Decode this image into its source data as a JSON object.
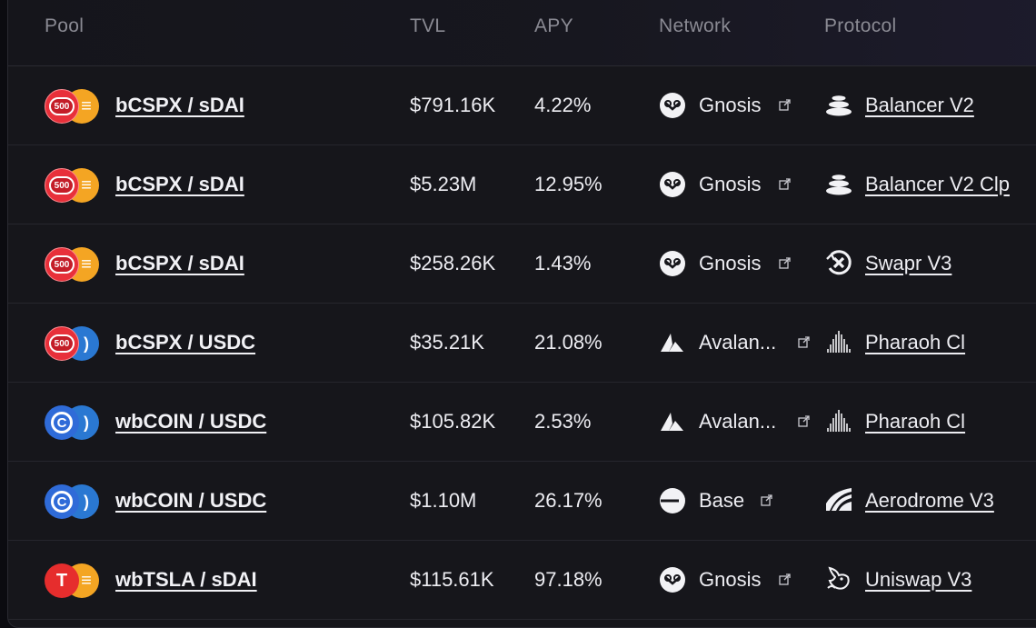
{
  "header": {
    "pool": "Pool",
    "tvl": "TVL",
    "apy": "APY",
    "network": "Network",
    "protocol": "Protocol"
  },
  "colors": {
    "background": "#16161b",
    "border": "#2a2a31",
    "text": "#ededf2",
    "muted": "#8a8a93"
  },
  "rows": [
    {
      "pool": "bCSPX / sDAI",
      "token_a": "sp500-icon",
      "token_b": "sdai-icon",
      "tvl": "$791.16K",
      "apy": "4.22%",
      "network": "Gnosis",
      "network_icon": "gnosis-icon",
      "protocol": "Balancer V2",
      "protocol_icon": "balancer-icon"
    },
    {
      "pool": "bCSPX / sDAI",
      "token_a": "sp500-icon",
      "token_b": "sdai-icon",
      "tvl": "$5.23M",
      "apy": "12.95%",
      "network": "Gnosis",
      "network_icon": "gnosis-icon",
      "protocol": "Balancer V2 Clp",
      "protocol_icon": "balancer-icon"
    },
    {
      "pool": "bCSPX / sDAI",
      "token_a": "sp500-icon",
      "token_b": "sdai-icon",
      "tvl": "$258.26K",
      "apy": "1.43%",
      "network": "Gnosis",
      "network_icon": "gnosis-icon",
      "protocol": "Swapr V3",
      "protocol_icon": "swapr-icon"
    },
    {
      "pool": "bCSPX / USDC",
      "token_a": "sp500-icon",
      "token_b": "usdc-icon",
      "tvl": "$35.21K",
      "apy": "21.08%",
      "network": "Avalan...",
      "network_icon": "avalanche-icon",
      "protocol": "Pharaoh Cl",
      "protocol_icon": "pharaoh-icon"
    },
    {
      "pool": "wbCOIN / USDC",
      "token_a": "coinbase-icon",
      "token_b": "usdc-icon",
      "tvl": "$105.82K",
      "apy": "2.53%",
      "network": "Avalan...",
      "network_icon": "avalanche-icon",
      "protocol": "Pharaoh Cl",
      "protocol_icon": "pharaoh-icon"
    },
    {
      "pool": "wbCOIN / USDC",
      "token_a": "coinbase-icon",
      "token_b": "usdc-icon",
      "tvl": "$1.10M",
      "apy": "26.17%",
      "network": "Base",
      "network_icon": "base-icon",
      "protocol": "Aerodrome V3",
      "protocol_icon": "aerodrome-icon"
    },
    {
      "pool": "wbTSLA / sDAI",
      "token_a": "tesla-icon",
      "token_b": "sdai-icon",
      "tvl": "$115.61K",
      "apy": "97.18%",
      "network": "Gnosis",
      "network_icon": "gnosis-icon",
      "protocol": "Uniswap V3",
      "protocol_icon": "uniswap-icon"
    }
  ]
}
